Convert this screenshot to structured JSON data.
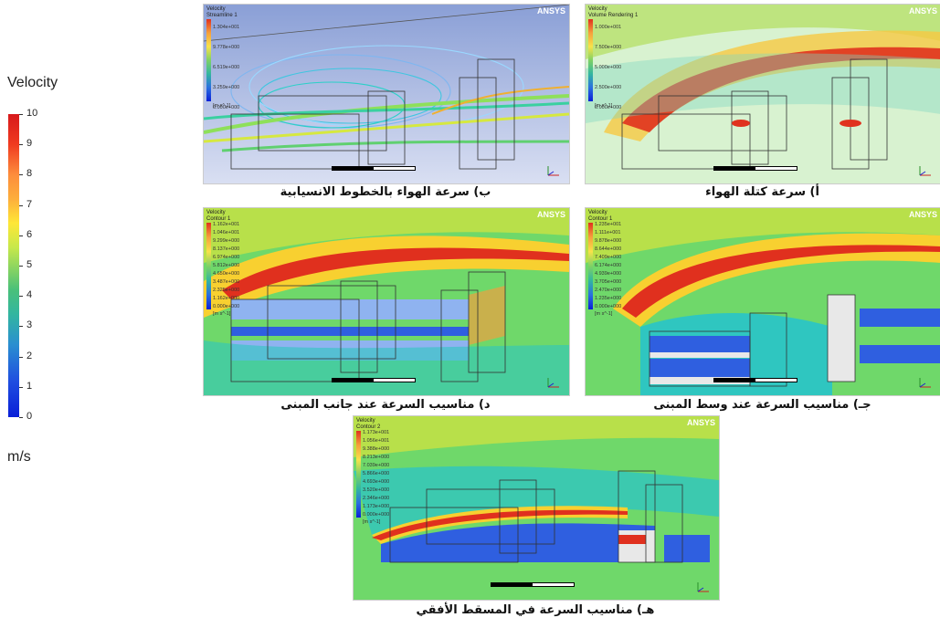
{
  "legend": {
    "title": "Velocity",
    "unit": "m/s",
    "ticks": [
      "10",
      "9",
      "8",
      "7",
      "6",
      "5",
      "4",
      "3",
      "2",
      "1",
      "0"
    ]
  },
  "panels": {
    "b": {
      "caption": "ب) سرعة الهواء بالخطوط الانسيابية",
      "title_line1": "Velocity",
      "title_line2": "Streamline 1",
      "labels": [
        "1.304e+001",
        "9.778e+000",
        "6.519e+000",
        "3.259e+000",
        "0.000e+000"
      ],
      "unit": "[m s^-1]",
      "logo": "ANSYS"
    },
    "a": {
      "caption": "أ) سرعة كتلة الهواء",
      "title_line1": "Velocity",
      "title_line2": "Volume Rendering 1",
      "labels": [
        "1.000e+001",
        "7.500e+000",
        "5.000e+000",
        "2.500e+000",
        "0.000e+000"
      ],
      "unit": "[m s^-1]",
      "logo": "ANSYS"
    },
    "d": {
      "caption": "د) مناسيب السرعة عند جانب المبنى",
      "title_line1": "Velocity",
      "title_line2": "Contour 1",
      "labels": [
        "1.162e+001",
        "1.046e+001",
        "9.299e+000",
        "8.137e+000",
        "6.974e+000",
        "5.812e+000",
        "4.650e+000",
        "3.487e+000",
        "2.325e+000",
        "1.162e+000",
        "0.000e+000"
      ],
      "unit": "[m s^-1]",
      "logo": "ANSYS"
    },
    "c": {
      "caption": "جـ) مناسيب السرعة عند وسط المبنى",
      "title_line1": "Velocity",
      "title_line2": "Contour 1",
      "labels": [
        "1.235e+001",
        "1.111e+001",
        "9.878e+000",
        "8.644e+000",
        "7.409e+000",
        "6.174e+000",
        "4.939e+000",
        "3.705e+000",
        "2.470e+000",
        "1.235e+000",
        "0.000e+000"
      ],
      "unit": "[m s^-1]",
      "logo": "ANSYS"
    },
    "e": {
      "caption": "هـ) مناسيب السرعة في المسقط الأفقي",
      "title_line1": "Velocity",
      "title_line2": "Contour 2",
      "labels": [
        "1.173e+001",
        "1.056e+001",
        "9.388e+000",
        "8.213e+000",
        "7.039e+000",
        "5.866e+000",
        "4.693e+000",
        "3.520e+000",
        "2.346e+000",
        "1.173e+000",
        "0.000e+000"
      ],
      "unit": "[m s^-1]",
      "logo": "ANSYS"
    }
  }
}
